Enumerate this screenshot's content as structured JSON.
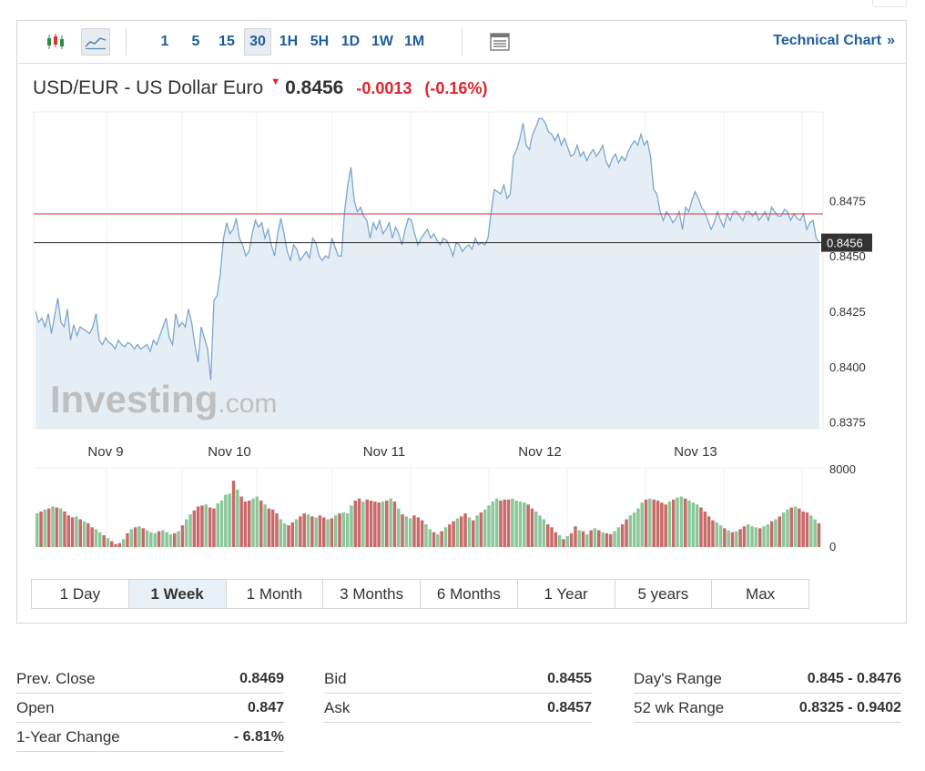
{
  "toolbar": {
    "chart_icons": [
      "candlestick-icon",
      "line-chart-icon"
    ],
    "intervals": [
      "1",
      "5",
      "15",
      "30",
      "1H",
      "5H",
      "1D",
      "1W",
      "1M"
    ],
    "active_interval": "30",
    "settings_icon": "table-icon",
    "technical_chart_label": "Technical Chart",
    "technical_chart_arrow": "»"
  },
  "header": {
    "name": "USD/EUR - US Dollar Euro",
    "price": "0.8456",
    "change": "-0.0013",
    "change_pct": "(-0.16%)"
  },
  "chart_data": {
    "type": "area",
    "watermark": "Investing",
    "watermark_suffix": ".com",
    "x_labels": [
      "Nov 9",
      "Nov 10",
      "Nov 11",
      "Nov 12",
      "Nov 13"
    ],
    "y_ticks": [
      "0.8475",
      "0.8450",
      "0.8425",
      "0.8400",
      "0.8375"
    ],
    "y_range": [
      0.8372,
      0.8515
    ],
    "prev_close": 0.8469,
    "last_price": 0.8456,
    "last_price_label": "0.8456",
    "price_series": [
      0.8425,
      0.842,
      0.8422,
      0.8418,
      0.8424,
      0.8415,
      0.8423,
      0.8431,
      0.842,
      0.8418,
      0.8426,
      0.8412,
      0.8419,
      0.8414,
      0.8418,
      0.8417,
      0.8416,
      0.8415,
      0.8418,
      0.8424,
      0.8412,
      0.841,
      0.8413,
      0.8411,
      0.841,
      0.8408,
      0.8412,
      0.841,
      0.8409,
      0.8411,
      0.841,
      0.8408,
      0.841,
      0.8408,
      0.8409,
      0.841,
      0.8407,
      0.8412,
      0.841,
      0.8414,
      0.8418,
      0.8422,
      0.8413,
      0.841,
      0.8424,
      0.8418,
      0.842,
      0.8418,
      0.8426,
      0.842,
      0.841,
      0.8402,
      0.8418,
      0.8413,
      0.8408,
      0.8394,
      0.843,
      0.8432,
      0.8442,
      0.8458,
      0.8465,
      0.846,
      0.8462,
      0.8467,
      0.8458,
      0.8455,
      0.845,
      0.8452,
      0.846,
      0.8466,
      0.8463,
      0.8465,
      0.8458,
      0.8462,
      0.8455,
      0.845,
      0.846,
      0.8467,
      0.846,
      0.8452,
      0.8448,
      0.8455,
      0.8453,
      0.8448,
      0.845,
      0.8452,
      0.8449,
      0.8458,
      0.8456,
      0.845,
      0.8448,
      0.845,
      0.8449,
      0.8458,
      0.8454,
      0.845,
      0.845,
      0.847,
      0.8482,
      0.849,
      0.8475,
      0.847,
      0.8472,
      0.8468,
      0.8466,
      0.8458,
      0.8465,
      0.8462,
      0.8466,
      0.846,
      0.8462,
      0.8465,
      0.8458,
      0.8463,
      0.846,
      0.8455,
      0.8462,
      0.8467,
      0.8466,
      0.846,
      0.8455,
      0.8458,
      0.846,
      0.8462,
      0.8458,
      0.846,
      0.8457,
      0.8455,
      0.8458,
      0.8457,
      0.8454,
      0.845,
      0.8456,
      0.8455,
      0.8452,
      0.8454,
      0.8455,
      0.8453,
      0.8458,
      0.8455,
      0.8456,
      0.8455,
      0.8458,
      0.847,
      0.848,
      0.8479,
      0.8478,
      0.8482,
      0.8476,
      0.8478,
      0.8495,
      0.8498,
      0.8503,
      0.851,
      0.85,
      0.8498,
      0.8505,
      0.8508,
      0.8512,
      0.8512,
      0.851,
      0.8506,
      0.8505,
      0.8502,
      0.8505,
      0.85,
      0.8503,
      0.8499,
      0.8495,
      0.8496,
      0.85,
      0.8495,
      0.8497,
      0.8493,
      0.8496,
      0.8498,
      0.8495,
      0.8497,
      0.85,
      0.8493,
      0.849,
      0.8494,
      0.8496,
      0.8492,
      0.8495,
      0.8493,
      0.8497,
      0.85,
      0.8502,
      0.85,
      0.8505,
      0.85,
      0.8502,
      0.8495,
      0.848,
      0.8478,
      0.847,
      0.8466,
      0.847,
      0.8468,
      0.8465,
      0.8467,
      0.847,
      0.8462,
      0.8472,
      0.847,
      0.8475,
      0.8479,
      0.8476,
      0.8472,
      0.847,
      0.8466,
      0.8462,
      0.8465,
      0.847,
      0.8466,
      0.8463,
      0.8469,
      0.8466,
      0.847,
      0.847,
      0.8468,
      0.8466,
      0.847,
      0.847,
      0.8468,
      0.847,
      0.8466,
      0.8468,
      0.847,
      0.8466,
      0.8472,
      0.847,
      0.8468,
      0.8468,
      0.8471,
      0.847,
      0.8466,
      0.8469,
      0.8467,
      0.8466,
      0.8469,
      0.8462,
      0.8465,
      0.8466,
      0.8458,
      0.8456
    ],
    "volume_ticks": [
      "8000",
      "0"
    ],
    "volume_max": 8000,
    "volume_series": [
      3400,
      3600,
      3800,
      3900,
      4100,
      4000,
      3900,
      3600,
      3200,
      3000,
      3100,
      2800,
      2600,
      2400,
      2000,
      1800,
      1500,
      1200,
      900,
      600,
      300,
      400,
      800,
      1400,
      1800,
      2000,
      2100,
      1900,
      1700,
      1500,
      1400,
      1600,
      1700,
      1500,
      1300,
      1400,
      1600,
      2200,
      2800,
      3300,
      3700,
      4100,
      4200,
      4300,
      4000,
      3900,
      4400,
      4700,
      5300,
      5400,
      6700,
      5800,
      5100,
      4600,
      4700,
      4900,
      5100,
      4700,
      4300,
      3900,
      3800,
      3400,
      2800,
      2400,
      2200,
      2500,
      2800,
      3100,
      3400,
      3300,
      3100,
      3000,
      3200,
      3000,
      2800,
      2900,
      3200,
      3400,
      3500,
      3400,
      4200,
      4700,
      4900,
      4600,
      4800,
      4700,
      4600,
      4500,
      4600,
      4700,
      4900,
      4600,
      3900,
      3300,
      3100,
      2900,
      3200,
      3000,
      2700,
      2300,
      1800,
      1500,
      1300,
      1600,
      2000,
      2300,
      2600,
      2900,
      3100,
      3400,
      3000,
      2700,
      3200,
      3500,
      3800,
      4200,
      4600,
      4900,
      4700,
      4800,
      4800,
      4900,
      4700,
      4600,
      4500,
      4300,
      3900,
      3600,
      3200,
      2800,
      2300,
      2000,
      1500,
      1200,
      800,
      1100,
      1400,
      2100,
      1700,
      1600,
      1300,
      1700,
      1900,
      1700,
      1500,
      1400,
      1300,
      1600,
      2000,
      2300,
      2800,
      3200,
      3500,
      3900,
      4500,
      4800,
      4900,
      4800,
      4700,
      4500,
      4300,
      4600,
      4800,
      5000,
      5100,
      4900,
      4700,
      4500,
      4300,
      4000,
      3600,
      3100,
      2700,
      2500,
      2200,
      1900,
      1700,
      1500,
      1600,
      1800,
      2100,
      2300,
      2100,
      2000,
      1900,
      2100,
      2300,
      2600,
      2800,
      3100,
      3500,
      3800,
      4000,
      4100,
      3900,
      3600,
      3500,
      3200,
      2800,
      2400
    ]
  },
  "range_tabs": {
    "items": [
      "1 Day",
      "1 Week",
      "1 Month",
      "3 Months",
      "6 Months",
      "1 Year",
      "5 years",
      "Max"
    ],
    "active": "1 Week"
  },
  "stats": {
    "col1": [
      {
        "label": "Prev. Close",
        "value": "0.8469"
      },
      {
        "label": "Open",
        "value": "0.847"
      },
      {
        "label": "1-Year Change",
        "value": "- 6.81%"
      }
    ],
    "col2": [
      {
        "label": "Bid",
        "value": "0.8455"
      },
      {
        "label": "Ask",
        "value": "0.8457"
      }
    ],
    "col3": [
      {
        "label": "Day's Range",
        "value": "0.845 - 0.8476"
      },
      {
        "label": "52 wk Range",
        "value": "0.8325 - 0.9402"
      }
    ]
  },
  "colors": {
    "line": "#7ea6cc",
    "area": "#e6eef5",
    "prev_close_line": "#d0363a",
    "last_price_line": "#222222",
    "vol_up": "#8cc799",
    "vol_down": "#c96a6a",
    "link": "#1f5d9c",
    "negative": "#e0242c"
  }
}
